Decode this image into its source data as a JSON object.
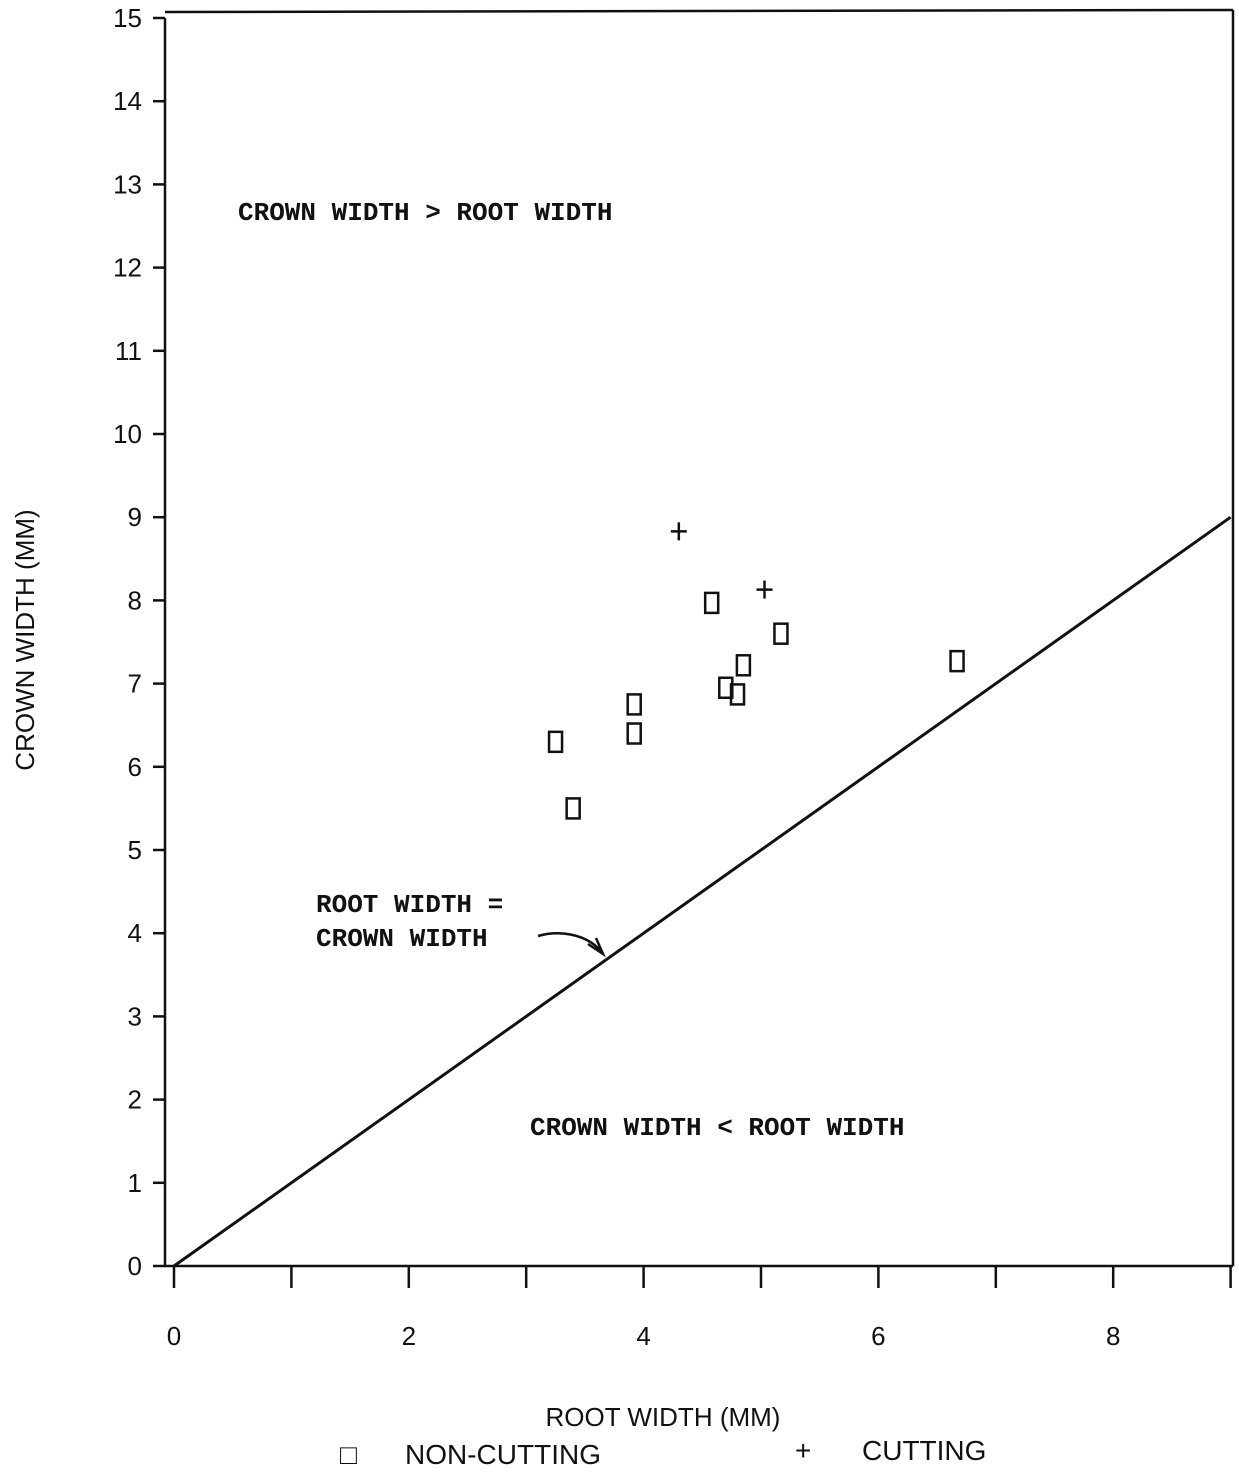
{
  "chart_data": {
    "type": "scatter",
    "xlabel": "ROOT WIDTH (MM)",
    "ylabel": "CROWN WIDTH (MM)",
    "xlim": [
      0,
      9
    ],
    "ylim": [
      0,
      15
    ],
    "x_ticks": [
      0,
      1,
      2,
      3,
      4,
      5,
      6,
      7,
      8,
      9
    ],
    "x_tick_labels": [
      "0",
      "2",
      "4",
      "6",
      "8"
    ],
    "y_tick_labels": [
      "0",
      "1",
      "2",
      "3",
      "4",
      "5",
      "6",
      "7",
      "8",
      "9",
      "10",
      "11",
      "12",
      "13",
      "14",
      "15"
    ],
    "grid": false,
    "series": [
      {
        "name": "NON-CUTTING",
        "marker": "square",
        "points": [
          {
            "x": 3.25,
            "y": 6.3
          },
          {
            "x": 3.4,
            "y": 5.5
          },
          {
            "x": 3.92,
            "y": 6.75
          },
          {
            "x": 3.92,
            "y": 6.4
          },
          {
            "x": 4.58,
            "y": 7.97
          },
          {
            "x": 4.7,
            "y": 6.95
          },
          {
            "x": 4.8,
            "y": 6.87
          },
          {
            "x": 4.85,
            "y": 7.22
          },
          {
            "x": 5.17,
            "y": 7.6
          },
          {
            "x": 6.67,
            "y": 7.27
          }
        ]
      },
      {
        "name": "CUTTING",
        "marker": "plus",
        "points": [
          {
            "x": 4.3,
            "y": 8.83
          },
          {
            "x": 5.03,
            "y": 8.13
          }
        ]
      }
    ],
    "reference_line": {
      "from": [
        0,
        0
      ],
      "to": [
        9,
        9
      ]
    },
    "annotations": {
      "upper_region": "CROWN WIDTH > ROOT WIDTH",
      "lower_region": "CROWN WIDTH < ROOT WIDTH",
      "line_label_1": "ROOT WIDTH =",
      "line_label_2": "CROWN WIDTH"
    },
    "legend": {
      "placement": "bottom",
      "non_cutting_label": "NON-CUTTING",
      "cutting_label": "CUTTING",
      "non_cutting_symbol": "□",
      "cutting_symbol": "+"
    }
  }
}
